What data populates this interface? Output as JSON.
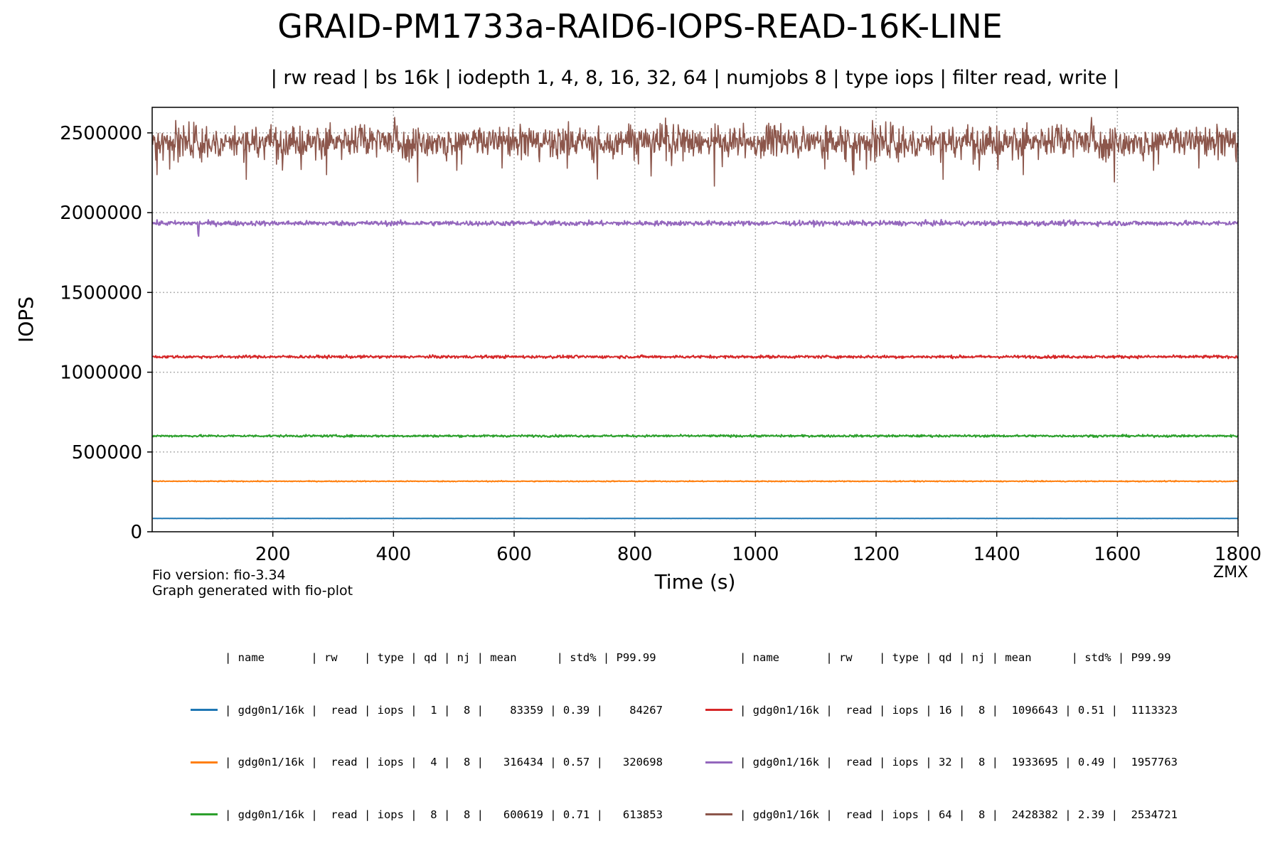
{
  "chart_data": {
    "type": "line",
    "title": "GRAID-PM1733a-RAID6-IOPS-READ-16K-LINE",
    "subtitle": "| rw read | bs 16k | iodepth 1, 4, 8, 16, 32, 64 | numjobs 8 | type iops | filter read, write |",
    "xlabel": "Time (s)",
    "ylabel": "IOPS",
    "xlim": [
      0,
      1800
    ],
    "ylim": [
      0,
      2660000
    ],
    "xticks": [
      200,
      400,
      600,
      800,
      1000,
      1200,
      1400,
      1600,
      1800
    ],
    "yticks": [
      0,
      500000,
      1000000,
      1500000,
      2000000,
      2500000
    ],
    "grid": true,
    "series": [
      {
        "name": "gdg0n1/16k qd 1",
        "color": "#1f77b4",
        "mean": 83359,
        "std_pct": 0.39
      },
      {
        "name": "gdg0n1/16k qd 4",
        "color": "#ff7f0e",
        "mean": 316434,
        "std_pct": 0.57
      },
      {
        "name": "gdg0n1/16k qd 8",
        "color": "#2ca02c",
        "mean": 600619,
        "std_pct": 0.71
      },
      {
        "name": "gdg0n1/16k qd 16",
        "color": "#d62728",
        "mean": 1096643,
        "std_pct": 0.51
      },
      {
        "name": "gdg0n1/16k qd 32",
        "color": "#9467bd",
        "mean": 1933695,
        "std_pct": 0.49
      },
      {
        "name": "gdg0n1/16k qd 64",
        "color": "#8c564b",
        "mean": 2428382,
        "std_pct": 2.39
      }
    ]
  },
  "notes": {
    "fio_version": "Fio version: fio-3.34",
    "generated": "Graph generated with fio-plot",
    "watermark": "ZMX"
  },
  "legend": {
    "header": "| name       | rw    | type | qd | nj | mean      | std% | P99.99",
    "left_rows": [
      {
        "color": "#1f77b4",
        "text": "| gdg0n1/16k |  read | iops |  1 |  8 |    83359 | 0.39 |    84267"
      },
      {
        "color": "#ff7f0e",
        "text": "| gdg0n1/16k |  read | iops |  4 |  8 |   316434 | 0.57 |   320698"
      },
      {
        "color": "#2ca02c",
        "text": "| gdg0n1/16k |  read | iops |  8 |  8 |   600619 | 0.71 |   613853"
      }
    ],
    "right_rows": [
      {
        "color": "#d62728",
        "text": "| gdg0n1/16k |  read | iops | 16 |  8 |  1096643 | 0.51 |  1113323"
      },
      {
        "color": "#9467bd",
        "text": "| gdg0n1/16k |  read | iops | 32 |  8 |  1933695 | 0.49 |  1957763"
      },
      {
        "color": "#8c564b",
        "text": "| gdg0n1/16k |  read | iops | 64 |  8 |  2428382 | 2.39 |  2534721"
      }
    ]
  }
}
